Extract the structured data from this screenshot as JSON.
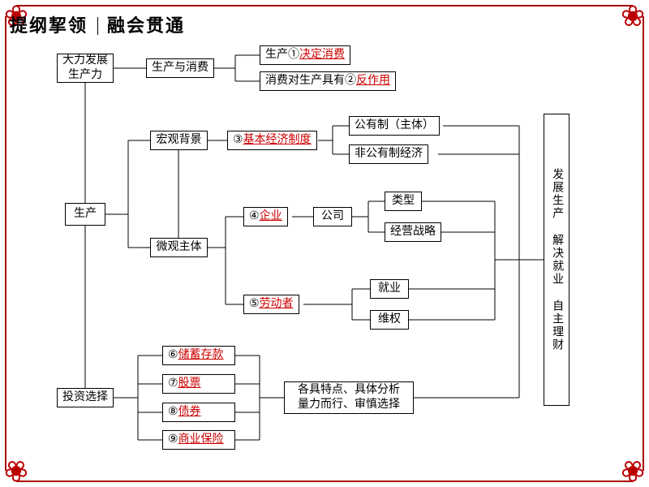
{
  "header": {
    "left": "提纲挈领",
    "right": "融会贯通"
  },
  "nodes": {
    "develop": {
      "text": "大力发展\n生产力"
    },
    "production": {
      "text": "生产"
    },
    "investment": {
      "text": "投资选择"
    },
    "prod_consume": {
      "text": "生产与消费"
    },
    "macro": {
      "text": "宏观背景"
    },
    "micro": {
      "text": "微观主体"
    },
    "pc_top": {
      "pre": "生产①",
      "red": "决定消费"
    },
    "pc_bot": {
      "pre": "消费对生产具有②",
      "red": "反作用"
    },
    "basic_econ": {
      "pre": "③",
      "red": "基本经济制度"
    },
    "public": {
      "text": "公有制（主体）"
    },
    "nonpublic": {
      "text": "非公有制经济"
    },
    "enterprise": {
      "pre": "④",
      "red": "企业"
    },
    "company": {
      "text": "公司"
    },
    "type": {
      "text": "类型"
    },
    "strategy": {
      "text": "经营战略"
    },
    "labor": {
      "pre": "⑤",
      "red": "劳动者"
    },
    "employ": {
      "text": "就业"
    },
    "rights": {
      "text": "维权"
    },
    "savings": {
      "pre": "⑥",
      "red": "储蓄存款"
    },
    "stock": {
      "pre": "⑦",
      "red": "股票"
    },
    "bond": {
      "pre": "⑧",
      "red": "债券"
    },
    "insurance": {
      "pre": "⑨",
      "red": "商业保险"
    },
    "invest_note": {
      "text": "各具特点、具体分析\n量力而行、审慎选择"
    },
    "right_col": {
      "text": "发展生产 解决就业 自主理财"
    }
  }
}
